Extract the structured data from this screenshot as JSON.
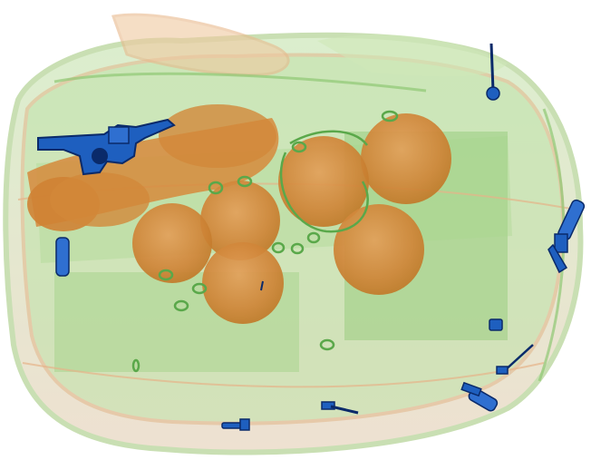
{
  "image": {
    "kind": "x-ray baggage scan",
    "background": "#ffffff",
    "palette": {
      "organic_orange": "#d98a3a",
      "organic_orange_dark": "#c0761f",
      "mixed_green": "#6fbf5a",
      "mixed_green_light": "#a8d88c",
      "metal_blue": "#1e5fbf",
      "metal_blue_dark": "#0a2a6a"
    },
    "contents": [
      {
        "item": "bag-outline",
        "material": "mixed"
      },
      {
        "item": "handgun",
        "material": "metal"
      },
      {
        "item": "round-fruit",
        "material": "organic",
        "count": 9
      },
      {
        "item": "cylinder-battery",
        "material": "metal",
        "count": 3
      },
      {
        "item": "small-metal-parts",
        "material": "metal"
      },
      {
        "item": "zipper-rings",
        "material": "mixed"
      }
    ]
  }
}
